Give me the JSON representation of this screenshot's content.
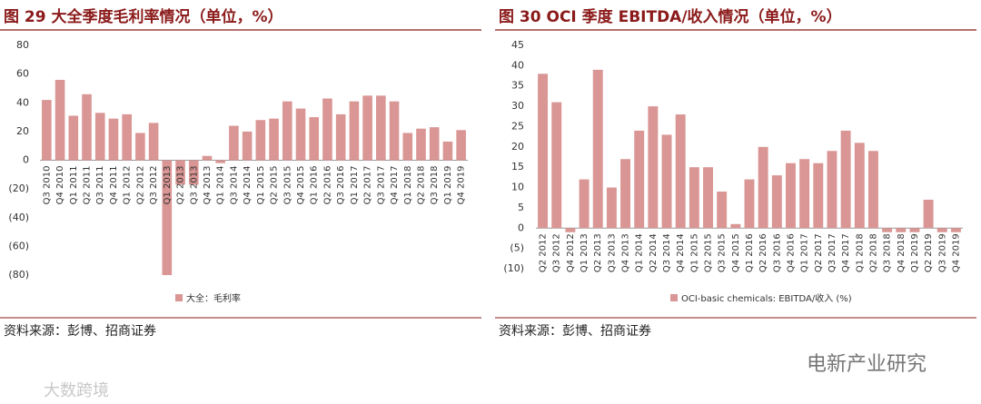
{
  "chart_data": [
    {
      "type": "bar",
      "title": "图 29  大全季度毛利率情况（单位，%）",
      "categories": [
        "Q3 2010",
        "Q4 2010",
        "Q1 2011",
        "Q2 2011",
        "Q3 2011",
        "Q4 2011",
        "Q1 2012",
        "Q2 2012",
        "Q3 2012",
        "Q1 2013",
        "Q2 2013",
        "Q3 2013",
        "Q4 2013",
        "Q1 2014",
        "Q3 2014",
        "Q4 2014",
        "Q1 2015",
        "Q2 2015",
        "Q3 2015",
        "Q4 2015",
        "Q1 2016",
        "Q2 2016",
        "Q3 2016",
        "Q1 2017",
        "Q2 2017",
        "Q3 2017",
        "Q4 2017",
        "Q1 2018",
        "Q2 2018",
        "Q3 2018",
        "Q1 2019",
        "Q4 2019"
      ],
      "series": [
        {
          "name": "大全：毛利率",
          "color": "#d99694",
          "values": [
            42,
            56,
            31,
            46,
            33,
            29,
            32,
            19,
            26,
            -80,
            -17,
            -17,
            3,
            -2,
            24,
            20,
            28,
            29,
            41,
            36,
            30,
            43,
            32,
            41,
            45,
            45,
            41,
            19,
            22,
            23,
            13,
            21
          ]
        }
      ],
      "ylim": [
        -80,
        80
      ],
      "yticks": [
        {
          "value": -80,
          "label": "(80)"
        },
        {
          "value": -60,
          "label": "(60)"
        },
        {
          "value": -40,
          "label": "(40)"
        },
        {
          "value": -20,
          "label": "(20)"
        },
        0,
        20,
        40,
        60,
        80
      ],
      "grid": false,
      "source": "资料来源：彭博、招商证券"
    },
    {
      "type": "bar",
      "title": "图 30 OCI 季度 EBITDA/收入情况（单位，%）",
      "categories": [
        "Q2 2012",
        "Q3 2012",
        "Q4 2012",
        "Q1 2013",
        "Q2 2013",
        "Q3 2013",
        "Q4 2013",
        "Q1 2014",
        "Q2 2014",
        "Q3 2014",
        "Q4 2014",
        "Q1 2015",
        "Q2 2015",
        "Q3 2015",
        "Q4 2015",
        "Q1 2016",
        "Q2 2016",
        "Q3 2016",
        "Q4 2016",
        "Q1 2017",
        "Q2 2017",
        "Q3 2017",
        "Q4 2017",
        "Q1 2018",
        "Q2 2018",
        "Q3 2018",
        "Q4 2018",
        "Q1 2019",
        "Q2 2019",
        "Q3 2019",
        "Q4 2019"
      ],
      "series": [
        {
          "name": "OCI-basic chemicals: EBITDA/收入 (%)",
          "color": "#d99694",
          "values": [
            38,
            31,
            -1,
            12,
            39,
            10,
            17,
            24,
            30,
            23,
            28,
            15,
            15,
            9,
            1,
            12,
            20,
            13,
            16,
            17,
            16,
            19,
            24,
            21,
            19,
            -1,
            -1,
            -1,
            7,
            -1,
            -1
          ]
        }
      ],
      "ylim": [
        -10,
        45
      ],
      "yticks": [
        {
          "value": -10,
          "label": "(10)"
        },
        {
          "value": -5,
          "label": "(5)"
        },
        0,
        5,
        10,
        15,
        20,
        25,
        30,
        35,
        40,
        45
      ],
      "grid": false,
      "source": "资料来源：彭博、招商证券"
    }
  ],
  "watermarks": [
    "电新产业研究",
    "大数跨境"
  ]
}
